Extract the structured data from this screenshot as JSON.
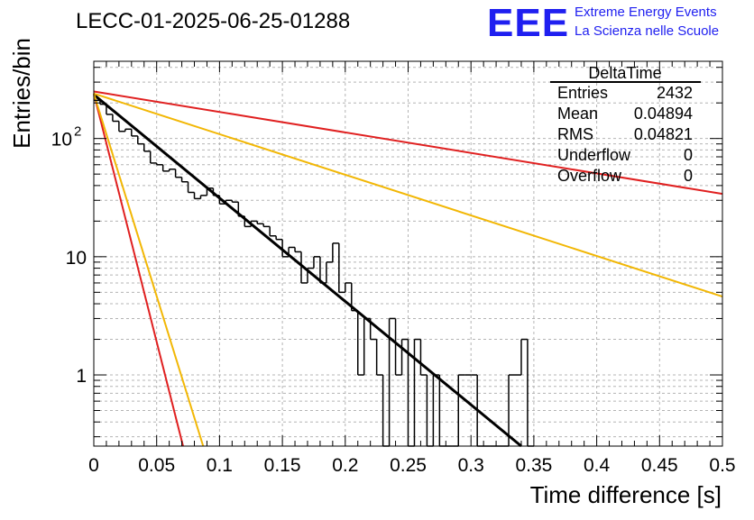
{
  "header": {
    "run_title": "LECC-01-2025-06-25-01288",
    "logo_text": "EEE",
    "brand_line1": "Extreme Energy Events",
    "brand_line2": "La Scienza nelle Scuole"
  },
  "stats_box": {
    "title": "DeltaTime",
    "rows": [
      {
        "label": "Entries",
        "value": "2432"
      },
      {
        "label": "Mean",
        "value": "0.04894"
      },
      {
        "label": "RMS",
        "value": "0.04821"
      },
      {
        "label": "Underflow",
        "value": "0"
      },
      {
        "label": "Overflow",
        "value": "0"
      }
    ]
  },
  "chart_data": {
    "type": "histogram",
    "title": "",
    "xlabel": "Time difference [s]",
    "ylabel": "Entries/bin",
    "xlim": [
      0,
      0.5
    ],
    "ylim": [
      0.25,
      450
    ],
    "y_scale": "log",
    "grid": true,
    "x_ticks": [
      "0",
      "0.05",
      "0.1",
      "0.15",
      "0.2",
      "0.25",
      "0.3",
      "0.35",
      "0.4",
      "0.45",
      "0.5"
    ],
    "y_ticks": [
      {
        "value": 1,
        "label": "1"
      },
      {
        "value": 10,
        "label": "10"
      },
      {
        "value": 100,
        "label": "10",
        "exponent": "2"
      }
    ],
    "histogram": {
      "bin_width": 0.005,
      "bins": [
        {
          "x": 0.005,
          "y": 210
        },
        {
          "x": 0.01,
          "y": 195
        },
        {
          "x": 0.015,
          "y": 160
        },
        {
          "x": 0.02,
          "y": 140
        },
        {
          "x": 0.025,
          "y": 115
        },
        {
          "x": 0.03,
          "y": 120
        },
        {
          "x": 0.035,
          "y": 105
        },
        {
          "x": 0.04,
          "y": 90
        },
        {
          "x": 0.045,
          "y": 78
        },
        {
          "x": 0.05,
          "y": 62
        },
        {
          "x": 0.055,
          "y": 60
        },
        {
          "x": 0.06,
          "y": 53
        },
        {
          "x": 0.065,
          "y": 55
        },
        {
          "x": 0.07,
          "y": 47
        },
        {
          "x": 0.075,
          "y": 43
        },
        {
          "x": 0.08,
          "y": 35
        },
        {
          "x": 0.085,
          "y": 31
        },
        {
          "x": 0.09,
          "y": 33
        },
        {
          "x": 0.095,
          "y": 38
        },
        {
          "x": 0.1,
          "y": 33
        },
        {
          "x": 0.105,
          "y": 28
        },
        {
          "x": 0.11,
          "y": 30
        },
        {
          "x": 0.115,
          "y": 29
        },
        {
          "x": 0.12,
          "y": 22
        },
        {
          "x": 0.125,
          "y": 18
        },
        {
          "x": 0.13,
          "y": 20
        },
        {
          "x": 0.135,
          "y": 19
        },
        {
          "x": 0.14,
          "y": 18
        },
        {
          "x": 0.145,
          "y": 15
        },
        {
          "x": 0.15,
          "y": 14
        },
        {
          "x": 0.155,
          "y": 10
        },
        {
          "x": 0.16,
          "y": 12
        },
        {
          "x": 0.165,
          "y": 11
        },
        {
          "x": 0.17,
          "y": 6
        },
        {
          "x": 0.175,
          "y": 8
        },
        {
          "x": 0.18,
          "y": 10
        },
        {
          "x": 0.185,
          "y": 6
        },
        {
          "x": 0.19,
          "y": 9
        },
        {
          "x": 0.195,
          "y": 13
        },
        {
          "x": 0.2,
          "y": 5
        },
        {
          "x": 0.205,
          "y": 6
        },
        {
          "x": 0.21,
          "y": 3.5
        },
        {
          "x": 0.215,
          "y": 1
        },
        {
          "x": 0.22,
          "y": 3
        },
        {
          "x": 0.225,
          "y": 2
        },
        {
          "x": 0.23,
          "y": 1
        },
        {
          "x": 0.235,
          "y": 0.25
        },
        {
          "x": 0.24,
          "y": 3
        },
        {
          "x": 0.245,
          "y": 1
        },
        {
          "x": 0.25,
          "y": 2
        },
        {
          "x": 0.255,
          "y": 0.25
        },
        {
          "x": 0.26,
          "y": 2
        },
        {
          "x": 0.265,
          "y": 1
        },
        {
          "x": 0.27,
          "y": 0.25
        },
        {
          "x": 0.275,
          "y": 1
        },
        {
          "x": 0.28,
          "y": 0.25
        },
        {
          "x": 0.285,
          "y": 0.25
        },
        {
          "x": 0.29,
          "y": 0.25
        },
        {
          "x": 0.295,
          "y": 1
        },
        {
          "x": 0.3,
          "y": 1
        },
        {
          "x": 0.305,
          "y": 1
        },
        {
          "x": 0.31,
          "y": 0.25
        },
        {
          "x": 0.315,
          "y": 0.25
        },
        {
          "x": 0.32,
          "y": 0.25
        },
        {
          "x": 0.325,
          "y": 0.25
        },
        {
          "x": 0.33,
          "y": 0.25
        },
        {
          "x": 0.335,
          "y": 1
        },
        {
          "x": 0.34,
          "y": 1
        },
        {
          "x": 0.345,
          "y": 2
        },
        {
          "x": 0.35,
          "y": 0.25
        }
      ]
    },
    "fits": [
      {
        "color": "#000000",
        "x0": 0.0,
        "y0": 235,
        "x1": 0.34,
        "y1": 0.25
      },
      {
        "color": "#e02020",
        "x0": 0.0,
        "y0": 250,
        "x1": 0.5,
        "y1": 34
      },
      {
        "color": "#f2b705",
        "x0": 0.0,
        "y0": 240,
        "x1": 0.5,
        "y1": 4.6
      },
      {
        "color": "#e02020",
        "x0": 0.0,
        "y0": 240,
        "x1": 0.071,
        "y1": 0.25
      },
      {
        "color": "#f2b705",
        "x0": 0.0,
        "y0": 240,
        "x1": 0.087,
        "y1": 0.25
      }
    ]
  }
}
